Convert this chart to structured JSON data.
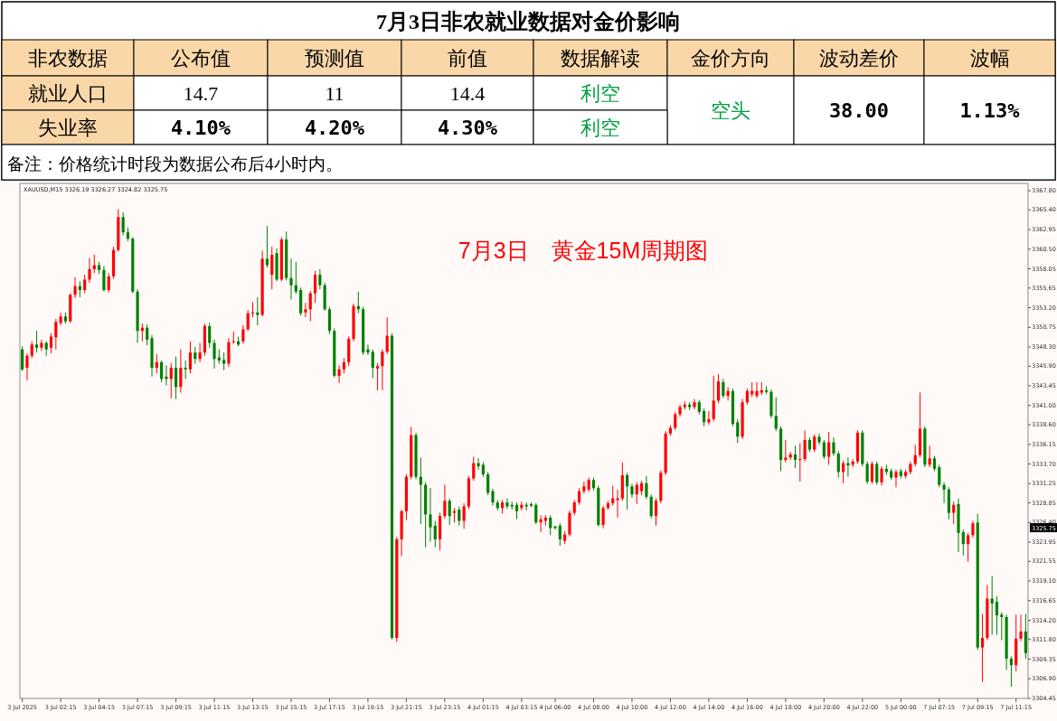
{
  "chart_data": [
    {
      "type": "other",
      "title": "7月3日非农就业数据对金价影响",
      "annotations": [
        "非农数据",
        "公布值",
        "预测值",
        "前值",
        "数据解读",
        "金价方向",
        "波动差价",
        "波幅",
        "就业人口",
        "14.7",
        "11",
        "14.4",
        "利空",
        "空头",
        "38.00",
        "1.13%",
        "失业率",
        "4.10%",
        "4.20%",
        "4.30%",
        "利空",
        "备注：价格统计时段为数据公布后4小时内。"
      ]
    },
    {
      "type": "candlestick",
      "title": "7月3日　黄金15M周期图",
      "annotations": [
        "XAUUSD,M15  3326.19 3326.27 3324.82 3325.75",
        {
          "text": "3325.75",
          "y": 3325.75
        }
      ],
      "colors": [
        "#008000",
        "#ff0000",
        "#ff0000",
        "#008000",
        "#ff0000",
        "#008000",
        "#ff0000",
        "#ff0000",
        "#ff0000",
        "#008000",
        "#ff0000",
        "#ff0000",
        "#008000",
        "#ff0000",
        "#ff0000",
        "#ff0000",
        "#008000",
        "#008000",
        "#ff0000",
        "#ff0000",
        "#ff0000",
        "#008000",
        "#008000",
        "#008000",
        "#008000",
        "#ff0000",
        "#008000",
        "#008000",
        "#ff0000",
        "#008000",
        "#008000",
        "#ff0000",
        "#008000",
        "#ff0000",
        "#008000",
        "#ff0000",
        "#008000",
        "#ff0000",
        "#ff0000",
        "#008000",
        "#008000",
        "#008000",
        "#008000",
        "#ff0000",
        "#ff0000",
        "#008000",
        "#ff0000",
        "#ff0000",
        "#ff0000",
        "#008000",
        "#ff0000",
        "#008000",
        "#ff0000",
        "#008000",
        "#ff0000",
        "#008000",
        "#008000",
        "#008000",
        "#008000",
        "#ff0000",
        "#ff0000",
        "#ff0000",
        "#008000",
        "#008000",
        "#008000",
        "#008000",
        "#ff0000",
        "#ff0000",
        "#ff0000",
        "#ff0000",
        "#008000",
        "#008000",
        "#008000",
        "#008000",
        "#ff0000",
        "#ff0000",
        "#ff0000",
        "#008000",
        "#ff0000",
        "#ff0000",
        "#ff0000",
        "#ff0000",
        "#008000",
        "#008000",
        "#008000",
        "#008000",
        "#008000",
        "#ff0000",
        "#ff0000",
        "#008000",
        "#ff0000",
        "#008000",
        "#ff0000",
        "#ff0000",
        "#ff0000",
        "#008000",
        "#008000",
        "#008000",
        "#008000",
        "#008000",
        "#ff0000",
        "#008000",
        "#008000",
        "#008000",
        "#ff0000",
        "#008000",
        "#008000",
        "#008000",
        "#ff0000",
        "#ff0000",
        "#008000",
        "#008000",
        "#008000",
        "#ff0000",
        "#ff0000",
        "#ff0000",
        "#ff0000",
        "#ff0000",
        "#ff0000",
        "#008000",
        "#008000",
        "#ff0000",
        "#ff0000",
        "#ff0000",
        "#ff0000",
        "#ff0000",
        "#008000",
        "#008000",
        "#ff0000",
        "#ff0000",
        "#008000",
        "#008000",
        "#ff0000",
        "#ff0000",
        "#ff0000",
        "#ff0000",
        "#ff0000",
        "#ff0000",
        "#ff0000",
        "#008000",
        "#ff0000",
        "#008000",
        "#008000",
        "#ff0000",
        "#ff0000",
        "#ff0000",
        "#008000",
        "#ff0000",
        "#008000",
        "#008000",
        "#ff0000",
        "#ff0000",
        "#ff0000",
        "#ff0000",
        "#ff0000",
        "#008000",
        "#008000",
        "#008000",
        "#008000",
        "#ff0000",
        "#ff0000",
        "#008000",
        "#ff0000",
        "#ff0000",
        "#008000",
        "#ff0000",
        "#008000",
        "#008000",
        "#ff0000",
        "#008000",
        "#008000",
        "#ff0000",
        "#008000",
        "#ff0000",
        "#ff0000",
        "#008000",
        "#008000",
        "#ff0000",
        "#008000",
        "#ff0000",
        "#008000",
        "#008000",
        "#ff0000",
        "#008000",
        "#ff0000",
        "#ff0000",
        "#ff0000",
        "#ff0000",
        "#008000",
        "#ff0000",
        "#008000",
        "#008000",
        "#008000",
        "#008000",
        "#ff0000",
        "#008000",
        "#008000",
        "#ff0000",
        "#ff0000",
        "#008000",
        "#ff0000",
        "#ff0000",
        "#008000",
        "#008000",
        "#008000",
        "#008000",
        "#008000",
        "#ff0000",
        "#ff0000",
        "#008000"
      ],
      "ylim": [
        3304.45,
        3368.7
      ],
      "yticks": [
        {
          "value": 3304.45,
          "label": "3304.45"
        },
        {
          "value": 3306.9,
          "label": "3306.90"
        },
        {
          "value": 3309.35,
          "label": "3309.35"
        },
        {
          "value": 3311.8,
          "label": "3311.80"
        },
        {
          "value": 3314.2,
          "label": "3314.20"
        },
        {
          "value": 3316.65,
          "label": "3316.65"
        },
        {
          "value": 3319.1,
          "label": "3319.10"
        },
        {
          "value": 3321.55,
          "label": "3321.55"
        },
        {
          "value": 3323.95,
          "label": "3323.95"
        },
        {
          "value": 3326.4,
          "label": "3326.40"
        },
        {
          "value": 3328.85,
          "label": "3328.85"
        },
        {
          "value": 3331.25,
          "label": "3331.25"
        },
        {
          "value": 3333.7,
          "label": "3333.70"
        },
        {
          "value": 3336.15,
          "label": "3336.15"
        },
        {
          "value": 3338.6,
          "label": "3338.60"
        },
        {
          "value": 3341,
          "label": "3341.00"
        },
        {
          "value": 3343.45,
          "label": "3343.45"
        },
        {
          "value": 3345.9,
          "label": "3345.90"
        },
        {
          "value": 3348.3,
          "label": "3348.30"
        },
        {
          "value": 3350.75,
          "label": "3350.75"
        },
        {
          "value": 3353.2,
          "label": "3353.20"
        },
        {
          "value": 3355.65,
          "label": "3355.65"
        },
        {
          "value": 3358.05,
          "label": "3358.05"
        },
        {
          "value": 3360.5,
          "label": "3360.50"
        },
        {
          "value": 3362.95,
          "label": "3362.95"
        },
        {
          "value": 3365.4,
          "label": "3365.40"
        },
        {
          "value": 3367.8,
          "label": "3367.80"
        }
      ],
      "categories": [
        "3 Jul 2025",
        null,
        null,
        null,
        null,
        null,
        null,
        null,
        "3 Jul 02:15",
        null,
        null,
        null,
        null,
        null,
        null,
        null,
        "3 Jul 04:15",
        null,
        null,
        null,
        null,
        null,
        null,
        null,
        "3 Jul 07:15",
        null,
        null,
        null,
        null,
        null,
        null,
        null,
        "3 Jul 09:15",
        null,
        null,
        null,
        null,
        null,
        null,
        null,
        "3 Jul 11:15",
        null,
        null,
        null,
        null,
        null,
        null,
        null,
        "3 Jul 13:15",
        null,
        null,
        null,
        null,
        null,
        null,
        null,
        "3 Jul 15:15",
        null,
        null,
        null,
        null,
        null,
        null,
        null,
        "3 Jul 17:15",
        null,
        null,
        null,
        null,
        null,
        null,
        null,
        "3 Jul 19:15",
        null,
        null,
        null,
        null,
        null,
        null,
        null,
        "3 Jul 21:15",
        null,
        null,
        null,
        null,
        null,
        null,
        null,
        "3 Jul 23:15",
        null,
        null,
        null,
        null,
        null,
        null,
        null,
        "4 Jul 01:15",
        null,
        null,
        null,
        null,
        null,
        null,
        null,
        "4 Jul 03:15",
        null,
        null,
        null,
        null,
        null,
        null,
        "4 Jul 06:00",
        null,
        null,
        null,
        null,
        null,
        null,
        null,
        "4 Jul 08:00",
        null,
        null,
        null,
        null,
        null,
        null,
        null,
        "4 Jul 10:00",
        null,
        null,
        null,
        null,
        null,
        null,
        null,
        "4 Jul 12:00",
        null,
        null,
        null,
        null,
        null,
        null,
        null,
        "4 Jul 14:00",
        null,
        null,
        null,
        null,
        null,
        null,
        null,
        "4 Jul 16:00",
        null,
        null,
        null,
        null,
        null,
        null,
        null,
        "4 Jul 18:00",
        null,
        null,
        null,
        null,
        null,
        null,
        null,
        "4 Jul 20:00",
        null,
        null,
        null,
        null,
        null,
        null,
        null,
        "4 Jul 22:00",
        null,
        null,
        null,
        null,
        null,
        null,
        null,
        "5 Jul 00:00",
        null,
        null,
        null,
        null,
        null,
        null,
        null,
        "7 Jul 07:15",
        null,
        null,
        null,
        null,
        null,
        null,
        null,
        "7 Jul 09:15",
        null,
        null,
        null,
        null,
        null,
        null,
        null,
        "7 Jul 11:15",
        null,
        null
      ],
      "ohlc": [
        [
          3348.0,
          3348.4,
          3345.3,
          3345.5
        ],
        [
          3345.7,
          3347.5,
          3344.1,
          3347.2
        ],
        [
          3347.2,
          3349.0,
          3346.9,
          3348.6
        ],
        [
          3348.6,
          3350.3,
          3347.6,
          3348.2
        ],
        [
          3348.2,
          3349.2,
          3347.8,
          3348.8
        ],
        [
          3348.8,
          3349.0,
          3347.2,
          3348.0
        ],
        [
          3348.2,
          3350.0,
          3347.5,
          3349.6
        ],
        [
          3349.5,
          3351.8,
          3348.0,
          3351.4
        ],
        [
          3351.3,
          3352.6,
          3351.0,
          3352.1
        ],
        [
          3352.1,
          3352.6,
          3351.2,
          3351.5
        ],
        [
          3351.5,
          3355.0,
          3351.3,
          3354.8
        ],
        [
          3354.8,
          3357.0,
          3354.4,
          3355.9
        ],
        [
          3355.9,
          3356.5,
          3354.5,
          3355.4
        ],
        [
          3355.4,
          3357.3,
          3355.0,
          3356.7
        ],
        [
          3356.7,
          3359.4,
          3356.3,
          3358.0
        ],
        [
          3358.0,
          3359.8,
          3357.5,
          3358.5
        ],
        [
          3358.5,
          3358.9,
          3357.4,
          3357.9
        ],
        [
          3357.9,
          3358.4,
          3355.2,
          3355.4
        ],
        [
          3355.4,
          3357.5,
          3355.1,
          3357.1
        ],
        [
          3357.1,
          3360.8,
          3356.8,
          3360.4
        ],
        [
          3360.4,
          3365.5,
          3360.2,
          3364.5
        ],
        [
          3364.5,
          3365.1,
          3362.2,
          3362.6
        ],
        [
          3362.6,
          3363.2,
          3361.5,
          3361.8
        ],
        [
          3361.8,
          3362.0,
          3355.0,
          3355.2
        ],
        [
          3355.2,
          3355.5,
          3348.8,
          3350.3
        ],
        [
          3350.3,
          3351.2,
          3349.0,
          3350.7
        ],
        [
          3350.7,
          3351.1,
          3348.5,
          3349.2
        ],
        [
          3349.4,
          3349.8,
          3344.6,
          3345.7
        ],
        [
          3345.7,
          3347.4,
          3345.0,
          3346.4
        ],
        [
          3346.4,
          3346.6,
          3343.9,
          3344.3
        ],
        [
          3344.6,
          3346.0,
          3343.5,
          3344.3
        ],
        [
          3344.3,
          3346.3,
          3341.9,
          3345.7
        ],
        [
          3345.7,
          3347.1,
          3341.8,
          3343.3
        ],
        [
          3343.3,
          3348.0,
          3342.6,
          3345.7
        ],
        [
          3345.7,
          3346.6,
          3344.3,
          3345.5
        ],
        [
          3345.5,
          3349.0,
          3345.0,
          3347.6
        ],
        [
          3347.6,
          3348.3,
          3346.2,
          3346.8
        ],
        [
          3346.8,
          3348.8,
          3346.4,
          3347.6
        ],
        [
          3347.6,
          3351.2,
          3347.2,
          3350.9
        ],
        [
          3350.9,
          3351.3,
          3348.2,
          3348.8
        ],
        [
          3348.8,
          3349.2,
          3345.6,
          3346.8
        ],
        [
          3347.0,
          3348.0,
          3346.2,
          3346.6
        ],
        [
          3346.7,
          3347.6,
          3345.4,
          3346.2
        ],
        [
          3346.2,
          3349.4,
          3345.8,
          3348.9
        ],
        [
          3348.9,
          3350.2,
          3348.7,
          3349.0
        ],
        [
          3349.0,
          3349.6,
          3348.4,
          3348.6
        ],
        [
          3349.0,
          3351.0,
          3348.7,
          3350.5
        ],
        [
          3350.5,
          3352.9,
          3350.3,
          3352.5
        ],
        [
          3352.5,
          3353.9,
          3352.0,
          3352.6
        ],
        [
          3352.6,
          3354.5,
          3351.0,
          3352.3
        ],
        [
          3352.3,
          3360.3,
          3352.1,
          3359.3
        ],
        [
          3359.3,
          3363.4,
          3358.2,
          3358.5
        ],
        [
          3357.3,
          3360.8,
          3355.5,
          3359.8
        ],
        [
          3360.0,
          3360.6,
          3356.5,
          3356.7
        ],
        [
          3356.7,
          3362.0,
          3356.5,
          3361.7
        ],
        [
          3361.7,
          3362.7,
          3356.6,
          3356.9
        ],
        [
          3356.9,
          3359.3,
          3354.2,
          3356.0
        ],
        [
          3356.0,
          3358.9,
          3354.9,
          3355.2
        ],
        [
          3355.4,
          3355.7,
          3352.2,
          3352.5
        ],
        [
          3352.6,
          3353.8,
          3352.0,
          3353.0
        ],
        [
          3353.0,
          3355.3,
          3351.5,
          3355.0
        ],
        [
          3355.0,
          3357.8,
          3353.8,
          3357.3
        ],
        [
          3357.3,
          3358.0,
          3355.5,
          3356.0
        ],
        [
          3356.0,
          3356.3,
          3352.8,
          3353.0
        ],
        [
          3353.0,
          3353.3,
          3349.9,
          3350.3
        ],
        [
          3350.3,
          3350.6,
          3344.5,
          3344.7
        ],
        [
          3344.7,
          3346.0,
          3343.8,
          3345.5
        ],
        [
          3345.5,
          3346.9,
          3345.0,
          3346.4
        ],
        [
          3346.4,
          3349.6,
          3345.9,
          3349.3
        ],
        [
          3349.3,
          3353.7,
          3349.0,
          3353.4
        ],
        [
          3353.4,
          3355.2,
          3352.5,
          3353.0
        ],
        [
          3353.0,
          3353.3,
          3347.3,
          3347.6
        ],
        [
          3348.0,
          3348.6,
          3347.3,
          3347.6
        ],
        [
          3347.7,
          3348.0,
          3344.4,
          3345.7
        ],
        [
          3345.6,
          3346.3,
          3342.9,
          3345.9
        ],
        [
          3345.9,
          3348.0,
          3342.9,
          3347.7
        ],
        [
          3347.7,
          3352.0,
          3347.4,
          3349.7
        ],
        [
          3349.7,
          3350.0,
          3311.8,
          3312.0
        ],
        [
          3312.0,
          3324.6,
          3311.5,
          3324.3
        ],
        [
          3324.3,
          3328.0,
          3322.2,
          3327.8
        ],
        [
          3327.8,
          3332.4,
          3326.7,
          3332.1
        ],
        [
          3332.1,
          3338.3,
          3331.8,
          3337.3
        ],
        [
          3337.3,
          3337.6,
          3331.8,
          3332.1
        ],
        [
          3332.1,
          3334.5,
          3326.2,
          3331.1
        ],
        [
          3331.1,
          3331.4,
          3323.3,
          3327.4
        ],
        [
          3327.4,
          3330.7,
          3324.0,
          3325.8
        ],
        [
          3326.0,
          3326.6,
          3323.3,
          3324.3
        ],
        [
          3324.3,
          3327.6,
          3322.9,
          3327.2
        ],
        [
          3327.2,
          3331.1,
          3326.9,
          3329.1
        ],
        [
          3329.1,
          3329.4,
          3326.1,
          3327.2
        ],
        [
          3327.6,
          3328.2,
          3326.4,
          3327.8
        ],
        [
          3328.0,
          3328.4,
          3326.0,
          3326.6
        ],
        [
          3326.6,
          3328.8,
          3325.6,
          3328.4
        ],
        [
          3328.4,
          3332.2,
          3328.1,
          3331.9
        ],
        [
          3331.9,
          3334.6,
          3331.6,
          3333.8
        ],
        [
          3333.8,
          3334.4,
          3333.0,
          3333.4
        ],
        [
          3333.6,
          3333.9,
          3332.1,
          3332.4
        ],
        [
          3332.4,
          3332.7,
          3329.8,
          3330.1
        ],
        [
          3330.3,
          3330.6,
          3328.5,
          3328.9
        ],
        [
          3328.9,
          3329.2,
          3327.9,
          3328.2
        ],
        [
          3328.2,
          3329.2,
          3327.5,
          3328.9
        ],
        [
          3328.9,
          3329.4,
          3328.1,
          3328.4
        ],
        [
          3328.6,
          3329.0,
          3328.0,
          3328.4
        ],
        [
          3328.6,
          3328.9,
          3326.8,
          3327.8
        ],
        [
          3328.2,
          3329.0,
          3327.9,
          3328.6
        ],
        [
          3328.6,
          3328.9,
          3327.9,
          3328.4
        ],
        [
          3328.7,
          3328.9,
          3328.3,
          3328.5
        ],
        [
          3328.6,
          3328.8,
          3326.2,
          3326.4
        ],
        [
          3326.4,
          3327.3,
          3325.2,
          3326.8
        ],
        [
          3326.6,
          3327.3,
          3326.0,
          3327.0
        ],
        [
          3327.0,
          3327.3,
          3324.8,
          3325.7
        ],
        [
          3325.9,
          3326.0,
          3325.5,
          3325.7
        ],
        [
          3326.0,
          3326.3,
          3323.5,
          3324.3
        ],
        [
          3324.1,
          3325.3,
          3323.7,
          3324.9
        ],
        [
          3324.9,
          3327.9,
          3324.7,
          3327.6
        ],
        [
          3327.6,
          3329.2,
          3327.3,
          3328.9
        ],
        [
          3328.9,
          3330.7,
          3328.6,
          3330.3
        ],
        [
          3330.3,
          3331.5,
          3330.0,
          3330.9
        ],
        [
          3330.5,
          3332.0,
          3330.2,
          3331.7
        ],
        [
          3331.7,
          3332.0,
          3330.4,
          3330.7
        ],
        [
          3330.7,
          3331.0,
          3325.9,
          3326.1
        ],
        [
          3326.1,
          3328.5,
          3325.7,
          3328.2
        ],
        [
          3328.2,
          3329.1,
          3328.0,
          3328.8
        ],
        [
          3328.8,
          3331.0,
          3328.5,
          3329.4
        ],
        [
          3329.2,
          3330.5,
          3327.0,
          3329.4
        ],
        [
          3329.4,
          3333.9,
          3329.1,
          3332.3
        ],
        [
          3332.3,
          3332.6,
          3328.0,
          3330.9
        ],
        [
          3330.9,
          3331.2,
          3329.5,
          3329.9
        ],
        [
          3329.9,
          3331.4,
          3328.7,
          3331.1
        ],
        [
          3330.3,
          3331.6,
          3329.8,
          3331.3
        ],
        [
          3331.3,
          3332.2,
          3329.3,
          3329.6
        ],
        [
          3329.6,
          3329.9,
          3326.9,
          3327.2
        ],
        [
          3327.2,
          3329.4,
          3326.0,
          3329.1
        ],
        [
          3329.1,
          3332.9,
          3328.8,
          3332.6
        ],
        [
          3332.6,
          3337.8,
          3332.3,
          3337.5
        ],
        [
          3337.5,
          3338.5,
          3337.2,
          3338.2
        ],
        [
          3338.2,
          3340.2,
          3337.9,
          3339.9
        ],
        [
          3339.9,
          3341.1,
          3339.6,
          3340.8
        ],
        [
          3340.8,
          3341.5,
          3340.5,
          3341.1
        ],
        [
          3341.1,
          3341.4,
          3340.4,
          3340.8
        ],
        [
          3340.8,
          3341.8,
          3340.5,
          3341.4
        ],
        [
          3341.4,
          3341.7,
          3339.9,
          3340.2
        ],
        [
          3340.3,
          3340.6,
          3338.4,
          3338.9
        ],
        [
          3338.9,
          3340.3,
          3338.6,
          3339.3
        ],
        [
          3339.3,
          3344.7,
          3339.0,
          3341.6
        ],
        [
          3341.6,
          3344.9,
          3341.3,
          3344.0
        ],
        [
          3343.9,
          3344.3,
          3341.9,
          3342.2
        ],
        [
          3342.2,
          3343.3,
          3341.6,
          3342.8
        ],
        [
          3342.8,
          3343.1,
          3338.4,
          3338.7
        ],
        [
          3338.9,
          3339.3,
          3336.3,
          3337.1
        ],
        [
          3337.1,
          3341.8,
          3336.8,
          3341.4
        ],
        [
          3341.4,
          3343.1,
          3341.1,
          3342.8
        ],
        [
          3342.4,
          3343.9,
          3342.1,
          3342.8
        ],
        [
          3342.2,
          3343.9,
          3341.9,
          3342.8
        ],
        [
          3342.6,
          3343.9,
          3342.3,
          3342.9
        ],
        [
          3342.9,
          3343.4,
          3342.4,
          3342.7
        ],
        [
          3342.7,
          3343.0,
          3339.4,
          3339.7
        ],
        [
          3339.7,
          3342.0,
          3337.8,
          3338.1
        ],
        [
          3338.1,
          3338.4,
          3332.8,
          3334.2
        ],
        [
          3334.2,
          3336.7,
          3333.9,
          3334.5
        ],
        [
          3334.5,
          3335.2,
          3334.2,
          3334.9
        ],
        [
          3334.9,
          3336.0,
          3333.2,
          3334.2
        ],
        [
          3334.2,
          3336.3,
          3331.5,
          3334.3
        ],
        [
          3334.3,
          3337.9,
          3334.0,
          3336.7
        ],
        [
          3336.7,
          3337.0,
          3335.2,
          3335.5
        ],
        [
          3335.5,
          3337.4,
          3335.2,
          3337.1
        ],
        [
          3337.1,
          3337.5,
          3336.1,
          3336.4
        ],
        [
          3336.4,
          3336.7,
          3334.3,
          3334.6
        ],
        [
          3334.6,
          3337.7,
          3333.6,
          3336.4
        ],
        [
          3336.4,
          3337.0,
          3334.7,
          3335.0
        ],
        [
          3335.0,
          3335.3,
          3332.0,
          3332.7
        ],
        [
          3332.7,
          3334.1,
          3331.3,
          3333.8
        ],
        [
          3333.8,
          3334.5,
          3332.1,
          3333.5
        ],
        [
          3333.6,
          3334.3,
          3333.3,
          3334.0
        ],
        [
          3334.0,
          3337.9,
          3333.7,
          3337.6
        ],
        [
          3337.6,
          3337.9,
          3333.4,
          3333.7
        ],
        [
          3333.7,
          3334.0,
          3331.2,
          3331.5
        ],
        [
          3331.5,
          3334.0,
          3331.2,
          3333.7
        ],
        [
          3333.7,
          3334.0,
          3331.1,
          3331.4
        ],
        [
          3331.4,
          3333.4,
          3331.0,
          3333.1
        ],
        [
          3333.1,
          3333.6,
          3332.3,
          3332.7
        ],
        [
          3332.8,
          3333.1,
          3331.7,
          3332.0
        ],
        [
          3332.0,
          3333.0,
          3330.8,
          3332.7
        ],
        [
          3332.8,
          3333.1,
          3331.9,
          3332.2
        ],
        [
          3332.2,
          3333.0,
          3331.9,
          3332.7
        ],
        [
          3332.7,
          3334.0,
          3332.4,
          3333.7
        ],
        [
          3333.7,
          3336.1,
          3333.4,
          3334.8
        ],
        [
          3334.8,
          3342.6,
          3334.5,
          3338.1
        ],
        [
          3338.1,
          3338.4,
          3333.3,
          3333.6
        ],
        [
          3333.6,
          3336.0,
          3333.3,
          3334.4
        ],
        [
          3334.4,
          3334.7,
          3332.8,
          3333.1
        ],
        [
          3333.3,
          3333.6,
          3330.8,
          3331.1
        ],
        [
          3331.1,
          3331.4,
          3328.8,
          3330.5
        ],
        [
          3330.5,
          3330.8,
          3326.8,
          3327.6
        ],
        [
          3327.6,
          3329.0,
          3326.2,
          3328.6
        ],
        [
          3328.7,
          3329.4,
          3322.7,
          3325.1
        ],
        [
          3325.2,
          3325.5,
          3322.3,
          3323.7
        ],
        [
          3323.7,
          3325.1,
          3321.5,
          3324.8
        ],
        [
          3324.8,
          3326.6,
          3324.5,
          3326.3
        ],
        [
          3326.4,
          3327.5,
          3310.5,
          3310.8
        ],
        [
          3310.8,
          3315.0,
          3306.5,
          3312.0
        ],
        [
          3312.0,
          3318.6,
          3311.7,
          3316.9
        ],
        [
          3316.9,
          3319.7,
          3312.4,
          3316.3
        ],
        [
          3316.5,
          3317.2,
          3312.4,
          3314.8
        ],
        [
          3314.9,
          3315.2,
          3311.7,
          3314.6
        ],
        [
          3314.6,
          3314.9,
          3308.0,
          3309.4
        ],
        [
          3309.4,
          3309.7,
          3305.9,
          3308.6
        ],
        [
          3308.6,
          3314.9,
          3307.8,
          3311.9
        ],
        [
          3311.9,
          3314.9,
          3311.6,
          3312.8
        ],
        [
          3312.8,
          3315.0,
          3309.4,
          3310.1
        ]
      ]
    }
  ]
}
